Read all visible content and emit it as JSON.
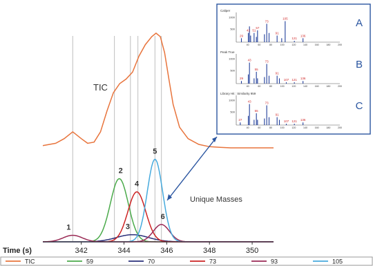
{
  "chart_data": [
    {
      "type": "line",
      "x_axis": {
        "label": "Time (s)",
        "range": [
          340.2,
          351.0
        ],
        "tick_labels": [
          "342",
          "344",
          "346",
          "348",
          "350"
        ]
      },
      "retention_markers": [
        341.6,
        343.55,
        344.3,
        344.65,
        345.45,
        345.75
      ],
      "series": [
        {
          "name": "TIC",
          "color": "#e8743c",
          "x": [
            340.2,
            340.8,
            341.2,
            341.6,
            342.0,
            342.3,
            342.6,
            342.9,
            343.2,
            343.5,
            343.8,
            344.1,
            344.4,
            344.7,
            345.0,
            345.3,
            345.5,
            345.7,
            345.9,
            346.1,
            346.3,
            346.6,
            347.0,
            347.5,
            348.0,
            348.5,
            349.0,
            350.0,
            351.0
          ],
          "y": [
            0.02,
            0.04,
            0.08,
            0.14,
            0.08,
            0.04,
            0.05,
            0.14,
            0.32,
            0.48,
            0.56,
            0.6,
            0.66,
            0.8,
            0.9,
            0.97,
            1.0,
            0.97,
            0.83,
            0.6,
            0.38,
            0.18,
            0.08,
            0.03,
            0.01,
            0.005,
            0.0,
            0.0,
            0.0
          ]
        },
        {
          "name": "59",
          "color": "#4aaa4a",
          "peak_x": 343.78,
          "height": 0.31,
          "sigma": 0.42
        },
        {
          "name": "70",
          "color": "#2a2f7a",
          "peak_x": 344.4,
          "height": 0.035,
          "sigma": 0.75
        },
        {
          "name": "73",
          "color": "#cc2222",
          "peak_x": 344.6,
          "height": 0.245,
          "sigma": 0.42
        },
        {
          "name": "93",
          "color": "#9a2a55",
          "peak_x": 345.75,
          "height": 0.085,
          "sigma": 0.38
        },
        {
          "name": "105",
          "color": "#46aadd",
          "peak_x": 345.45,
          "height": 0.405,
          "sigma": 0.36
        },
        {
          "name": "",
          "color": "#9a2a55",
          "peak_x": 341.6,
          "height": 0.032,
          "sigma": 0.45
        }
      ],
      "annotations": {
        "tic": "TIC",
        "unique_masses": "Unique Masses",
        "peak_numbers": [
          "1",
          "2",
          "3",
          "4",
          "5",
          "6"
        ]
      },
      "legend": {
        "placement": "bottom",
        "entries": [
          {
            "label": "TIC",
            "color": "#e8743c"
          },
          {
            "label": "59",
            "color": "#4aaa4a"
          },
          {
            "label": "70",
            "color": "#2a2f7a"
          },
          {
            "label": "73",
            "color": "#cc2222"
          },
          {
            "label": "93",
            "color": "#9a2a55"
          },
          {
            "label": "105",
            "color": "#46aadd"
          }
        ]
      }
    },
    {
      "type": "bar",
      "inset": "mass spectra comparison",
      "panels": [
        {
          "letter": "A",
          "caption": "Caliper",
          "y_ticks": [
            "1000",
            "500"
          ],
          "x_ticks": [
            "40",
            "60",
            "80",
            "100",
            "120",
            "140",
            "160",
            "180",
            "200"
          ],
          "peaks": [
            [
              29,
              0.15
            ],
            [
              41,
              0.35
            ],
            [
              43,
              0.6
            ],
            [
              45,
              0.25
            ],
            [
              51,
              0.35
            ],
            [
              55,
              0.2
            ],
            [
              57,
              0.45
            ],
            [
              69,
              0.3
            ],
            [
              73,
              0.7
            ],
            [
              77,
              0.35
            ],
            [
              91,
              0.25
            ],
            [
              99,
              0.15
            ],
            [
              105,
              0.8
            ],
            [
              121,
              0.05
            ],
            [
              136,
              0.15
            ]
          ],
          "peak_labels": [
            "29",
            "41",
            "51",
            "57",
            "73",
            "91",
            "105",
            "121",
            "136"
          ]
        },
        {
          "letter": "B",
          "caption": "Peak True",
          "y_ticks": [
            "1000",
            "500"
          ],
          "x_ticks": [
            "40",
            "60",
            "80",
            "100",
            "120",
            "140",
            "160",
            "180",
            "200"
          ],
          "peaks": [
            [
              29,
              0.1
            ],
            [
              41,
              0.35
            ],
            [
              43,
              0.8
            ],
            [
              51,
              0.2
            ],
            [
              55,
              0.45
            ],
            [
              57,
              0.2
            ],
            [
              69,
              0.25
            ],
            [
              73,
              0.75
            ],
            [
              77,
              0.3
            ],
            [
              91,
              0.3
            ],
            [
              95,
              0.2
            ],
            [
              107,
              0.05
            ],
            [
              121,
              0.05
            ],
            [
              136,
              0.1
            ]
          ],
          "peak_labels": [
            "29",
            "43",
            "55",
            "73",
            "91",
            "107",
            "121",
            "136"
          ]
        },
        {
          "letter": "C",
          "caption": "Library Hit : Similarity 959",
          "y_ticks": [
            "1000",
            "500"
          ],
          "x_ticks": [
            "40",
            "60",
            "80",
            "100",
            "120",
            "140",
            "160",
            "180",
            "200"
          ],
          "peaks": [
            [
              27,
              0.1
            ],
            [
              41,
              0.35
            ],
            [
              43,
              0.8
            ],
            [
              51,
              0.2
            ],
            [
              55,
              0.45
            ],
            [
              57,
              0.2
            ],
            [
              69,
              0.25
            ],
            [
              73,
              0.75
            ],
            [
              77,
              0.3
            ],
            [
              91,
              0.3
            ],
            [
              95,
              0.2
            ],
            [
              107,
              0.05
            ],
            [
              121,
              0.05
            ],
            [
              136,
              0.1
            ]
          ],
          "peak_labels": [
            "27",
            "43",
            "55",
            "73",
            "91",
            "107",
            "121",
            "136"
          ]
        }
      ]
    }
  ]
}
